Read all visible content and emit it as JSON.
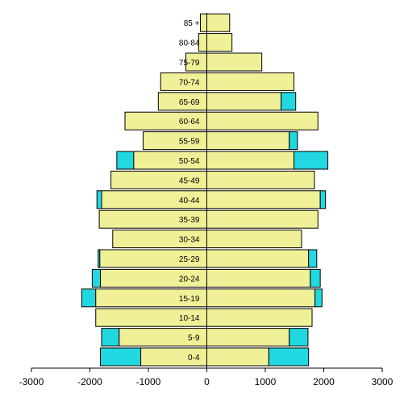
{
  "chart_data": {
    "type": "bar",
    "orientation": "horizontal",
    "chart_kind": "population-pyramid",
    "title": "",
    "xlabel": "",
    "ylabel": "",
    "xlim": [
      -3000,
      3000
    ],
    "x_ticks": [
      -3000,
      -2000,
      -1000,
      0,
      1000,
      2000,
      3000
    ],
    "x_tick_labels": [
      "-3000",
      "-2000",
      "-1000",
      "0",
      "1000",
      "2000",
      "3000"
    ],
    "grid": false,
    "legend": "none",
    "categories": [
      "0-4",
      "5-9",
      "10-14",
      "15-19",
      "20-24",
      "25-29",
      "30-34",
      "35-39",
      "40-44",
      "45-49",
      "50-54",
      "55-59",
      "60-64",
      "65-69",
      "70-74",
      "75-79",
      "80-84",
      "85 +"
    ],
    "category_labels": [
      "0-4",
      "5-9",
      "10-14",
      "15-19",
      "20-24",
      "25-29",
      "30-34",
      "35-39",
      "40-44",
      "45-49",
      "50-54",
      "55-59",
      "60-64",
      "65-69",
      "70-74",
      "75-79",
      "80-84",
      "85 +"
    ],
    "series": [
      {
        "side": "left",
        "role": "base",
        "color": "#f0f098",
        "values": [
          -1130,
          -1500,
          -1900,
          -1900,
          -1820,
          -1830,
          -1610,
          -1840,
          -1800,
          -1640,
          -1250,
          -1090,
          -1400,
          -830,
          -790,
          -360,
          -140,
          -110
        ]
      },
      {
        "side": "left",
        "role": "excess",
        "color": "#22d8e0",
        "values": [
          -1820,
          -1800,
          -1900,
          -2140,
          -1960,
          -1860,
          -1610,
          -1840,
          -1880,
          -1640,
          -1540,
          -1090,
          -1400,
          -830,
          -790,
          -360,
          -140,
          -110
        ]
      },
      {
        "side": "right",
        "role": "base",
        "color": "#f0f098",
        "values": [
          1060,
          1410,
          1800,
          1850,
          1770,
          1740,
          1620,
          1900,
          1940,
          1840,
          1490,
          1410,
          1900,
          1270,
          1490,
          940,
          430,
          390
        ]
      },
      {
        "side": "right",
        "role": "excess",
        "color": "#22d8e0",
        "values": [
          1740,
          1730,
          1800,
          1970,
          1940,
          1880,
          1620,
          1900,
          2030,
          1840,
          2070,
          1550,
          1900,
          1520,
          1490,
          940,
          430,
          390
        ]
      }
    ]
  }
}
